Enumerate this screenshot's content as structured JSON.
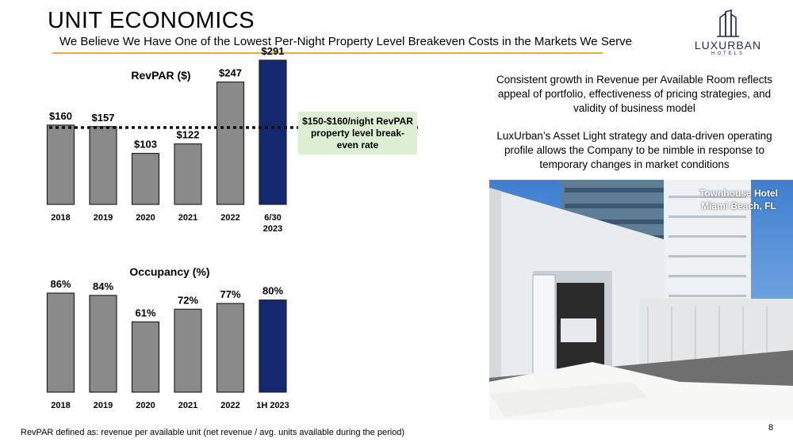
{
  "header": {
    "title": "UNIT ECONOMICS",
    "subtitle": "We Believe We Have One of the Lowest Per-Night Property Level Breakeven Costs in the Markets We Serve"
  },
  "logo": {
    "name": "LUXURBAN",
    "tagline": "HOTELS"
  },
  "colors": {
    "gray_bar": "#8a8a8a",
    "highlight_bar": "#13286e",
    "accent_rule": "#e2b23a",
    "breakeven_box": "#dcefd3"
  },
  "chart_data": [
    {
      "type": "bar",
      "title": "RevPAR ($)",
      "categories": [
        "2018",
        "2019",
        "2020",
        "2021",
        "2022",
        "6/30\n2023"
      ],
      "values": [
        160,
        157,
        103,
        122,
        247,
        291
      ],
      "labels": [
        "$160",
        "$157",
        "$103",
        "$122",
        "$247",
        "$291"
      ],
      "highlight_index": 5,
      "ylim": [
        0,
        300
      ],
      "reference_line": {
        "value": 155,
        "style": "dotted",
        "label": "$150-$160/night RevPAR property level break-even rate"
      }
    },
    {
      "type": "bar",
      "title": "Occupancy (%)",
      "categories": [
        "2018",
        "2019",
        "2020",
        "2021",
        "2022",
        "1H 2023"
      ],
      "values": [
        86,
        84,
        61,
        72,
        77,
        80
      ],
      "labels": [
        "86%",
        "84%",
        "61%",
        "72%",
        "77%",
        "80%"
      ],
      "highlight_index": 5,
      "ylim": [
        0,
        100
      ]
    }
  ],
  "notes": [
    "Consistent growth in Revenue per Available Room reflects appeal of portfolio, effectiveness of pricing strategies, and validity of business model",
    "LuxUrban’s Asset Light strategy and data-driven operating profile allows the Company to be nimble in response to temporary changes in market conditions"
  ],
  "photo": {
    "caption_line1": "Townhouse Hotel",
    "caption_line2": "Miami Beach, FL"
  },
  "footnote": "RevPAR defined as: revenue per available unit (net revenue / avg. units available during the period)",
  "page_number": "8"
}
